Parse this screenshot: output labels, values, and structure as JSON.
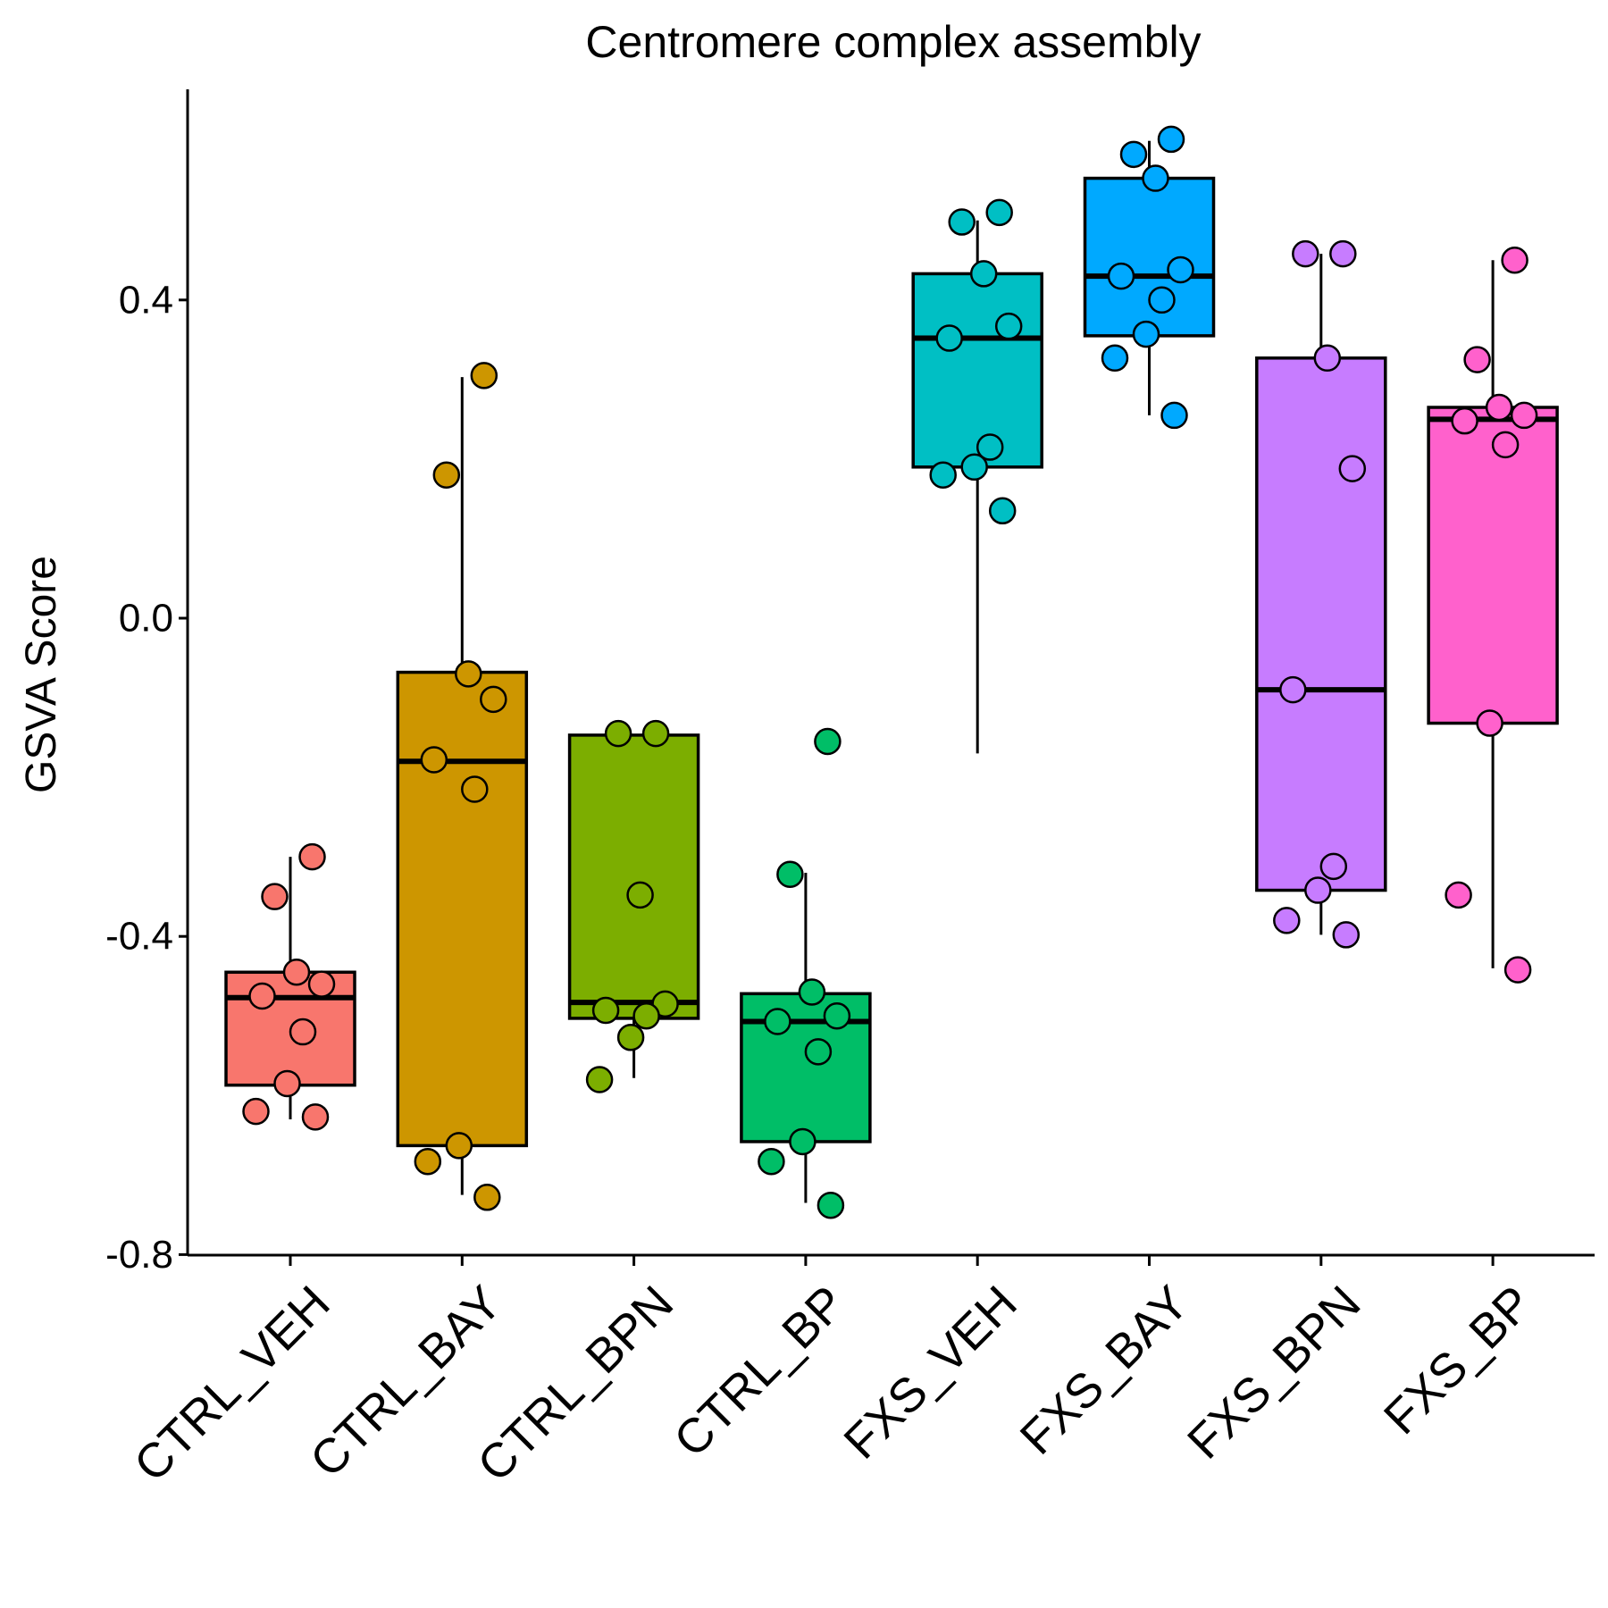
{
  "chart_data": {
    "type": "box",
    "title": "Centromere complex assembly",
    "xlabel": "",
    "ylabel": "GSVA Score",
    "ylim": [
      -0.8,
      0.66
    ],
    "yticks": [
      -0.8,
      -0.4,
      0.0,
      0.4
    ],
    "ytick_labels": [
      "-0.8",
      "-0.4",
      "0.0",
      "0.4"
    ],
    "grid": false,
    "legend": "none",
    "groups": [
      {
        "name": "CTRL_VEH",
        "color": "#F8766D",
        "box": {
          "whisker_low": -0.63,
          "q1": -0.587,
          "median": -0.477,
          "q3": -0.445,
          "whisker_high": -0.3
        },
        "points": [
          -0.3,
          -0.35,
          -0.445,
          -0.46,
          -0.475,
          -0.52,
          -0.585,
          -0.62,
          -0.627
        ]
      },
      {
        "name": "CTRL_BAY",
        "color": "#CD9600",
        "box": {
          "whisker_low": -0.725,
          "q1": -0.663,
          "median": -0.18,
          "q3": -0.068,
          "whisker_high": 0.303
        },
        "points": [
          0.305,
          0.18,
          -0.07,
          -0.102,
          -0.178,
          -0.215,
          -0.663,
          -0.683,
          -0.728
        ]
      },
      {
        "name": "CTRL_BPN",
        "color": "#7CAE00",
        "box": {
          "whisker_low": -0.578,
          "q1": -0.503,
          "median": -0.483,
          "q3": -0.147,
          "whisker_high": -0.147
        },
        "points": [
          -0.145,
          -0.145,
          -0.348,
          -0.485,
          -0.493,
          -0.5,
          -0.527,
          -0.58
        ]
      },
      {
        "name": "CTRL_BP",
        "color": "#00BE67",
        "box": {
          "whisker_low": -0.735,
          "q1": -0.658,
          "median": -0.507,
          "q3": -0.472,
          "whisker_high": -0.32
        },
        "points": [
          -0.155,
          -0.322,
          -0.47,
          -0.5,
          -0.507,
          -0.545,
          -0.658,
          -0.683,
          -0.738
        ]
      },
      {
        "name": "FXS_VEH",
        "color": "#00BFC4",
        "box": {
          "whisker_low": -0.17,
          "q1": 0.19,
          "median": 0.352,
          "q3": 0.433,
          "whisker_high": 0.5
        },
        "points": [
          0.51,
          0.498,
          0.433,
          0.367,
          0.352,
          0.215,
          0.19,
          0.18,
          0.135
        ]
      },
      {
        "name": "FXS_BAY",
        "color": "#00A9FF",
        "box": {
          "whisker_low": 0.255,
          "q1": 0.355,
          "median": 0.43,
          "q3": 0.553,
          "whisker_high": 0.6
        },
        "points": [
          0.602,
          0.583,
          0.553,
          0.438,
          0.43,
          0.4,
          0.357,
          0.327,
          0.255
        ]
      },
      {
        "name": "FXS_BPN",
        "color": "#C77CFF",
        "box": {
          "whisker_low": -0.398,
          "q1": -0.342,
          "median": -0.09,
          "q3": 0.327,
          "whisker_high": 0.458
        },
        "points": [
          0.458,
          0.458,
          0.327,
          0.188,
          -0.09,
          -0.312,
          -0.342,
          -0.38,
          -0.398
        ]
      },
      {
        "name": "FXS_BP",
        "color": "#FF61CC",
        "box": {
          "whisker_low": -0.44,
          "q1": -0.132,
          "median": 0.25,
          "q3": 0.265,
          "whisker_high": 0.45
        },
        "points": [
          0.45,
          0.325,
          0.265,
          0.255,
          0.248,
          0.218,
          -0.132,
          -0.348,
          -0.442
        ]
      }
    ]
  }
}
